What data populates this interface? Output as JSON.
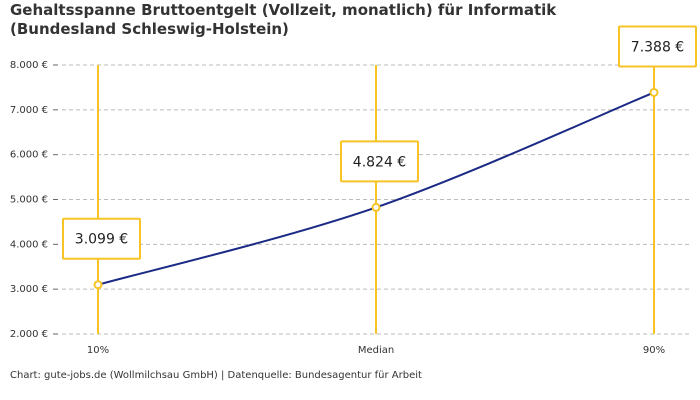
{
  "chart_data": {
    "type": "line",
    "title": "Gehaltsspanne Bruttoentgelt (Vollzeit, monatlich) für Informatik (Bundesland Schleswig-Holstein)",
    "source": "Chart: gute-jobs.de (Wollmilchsau GmbH) | Datenquelle: Bundesagentur für Arbeit",
    "categories": [
      "10%",
      "Median",
      "90%"
    ],
    "values": [
      3099,
      4824,
      7388
    ],
    "value_labels": [
      "3.099 €",
      "4.824 €",
      "7.388 €"
    ],
    "color": "#1b2a85",
    "marker_color": "#f7c325",
    "ylim": [
      2000,
      8000
    ],
    "yticks": [
      {
        "value": 2000,
        "label": "2.000 €"
      },
      {
        "value": 3000,
        "label": "3.000 €"
      },
      {
        "value": 4000,
        "label": "4.000 €"
      },
      {
        "value": 5000,
        "label": "5.000 €"
      },
      {
        "value": 6000,
        "label": "6.000 €"
      },
      {
        "value": 7000,
        "label": "7.000 €"
      },
      {
        "value": 8000,
        "label": "8.000 €"
      }
    ],
    "grid": true
  }
}
